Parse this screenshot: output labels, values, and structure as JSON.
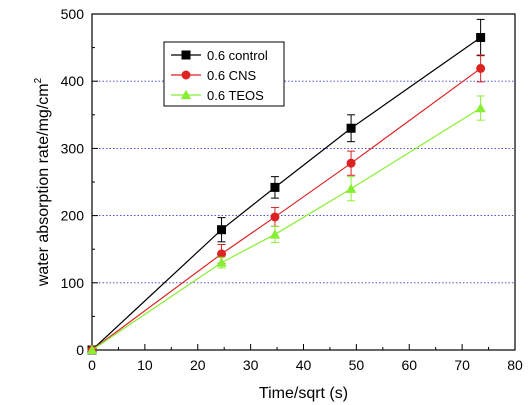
{
  "chart_data": {
    "type": "line",
    "title": "",
    "xlabel": "Time/sqrt (s)",
    "ylabel_main": "water absorption rate/mg/cm",
    "ylabel_sup": "2",
    "xlim": [
      0,
      80
    ],
    "ylim": [
      0,
      500
    ],
    "xticks": [
      0,
      10,
      20,
      30,
      40,
      50,
      60,
      70,
      80
    ],
    "yticks": [
      0,
      100,
      200,
      300,
      400,
      500
    ],
    "grid": "horizontal dotted",
    "grid_color": "#3a3ad6",
    "legend_position": "top-left",
    "series": [
      {
        "name": "0.6 control",
        "color": "#000000",
        "marker": "square",
        "x": [
          0,
          24.5,
          34.6,
          49,
          73.5
        ],
        "y": [
          0,
          179,
          242,
          330,
          465
        ],
        "err": [
          0,
          18,
          16,
          20,
          27
        ]
      },
      {
        "name": "0.6 CNS",
        "color": "#dd2222",
        "marker": "circle",
        "x": [
          0,
          24.5,
          34.6,
          49,
          73.5
        ],
        "y": [
          0,
          143,
          198,
          278,
          419
        ],
        "err": [
          0,
          14,
          14,
          18,
          20
        ]
      },
      {
        "name": "0.6 TEOS",
        "color": "#88ee33",
        "marker": "triangle",
        "x": [
          0,
          24.5,
          34.6,
          49,
          73.5
        ],
        "y": [
          0,
          130,
          172,
          240,
          360
        ],
        "err": [
          0,
          8,
          12,
          18,
          18
        ]
      }
    ]
  }
}
